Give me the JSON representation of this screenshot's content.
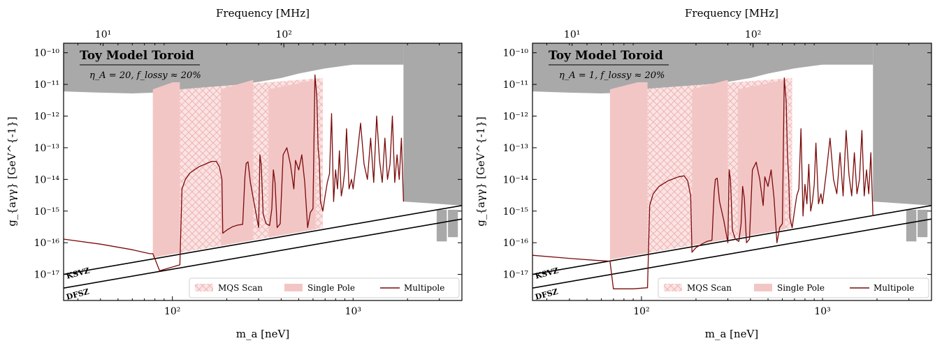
{
  "colors": {
    "excluded": "#a9a9a9",
    "scan_fill": "#f3cccc",
    "scan_hatch": "#f2bcbc",
    "single_pole": "#f3c6c6",
    "multipole": "#7a0a0a",
    "benchmark": "#000000"
  },
  "chart_data": [
    {
      "type": "line",
      "xlabel": "m_a [neV]",
      "ylabel": "g_{aγγ} [GeV^{-1}]",
      "top_xlabel": "Frequency [MHz]",
      "xscale": "log",
      "yscale": "log",
      "xlim": [
        25,
        4000
      ],
      "ylim": [
        1.5e-18,
        2e-10
      ],
      "x_ticks": [
        {
          "value": 100,
          "label": "10²"
        },
        {
          "value": 1000,
          "label": "10³"
        }
      ],
      "top_ticks": [
        {
          "value": 10,
          "label": "10¹"
        },
        {
          "value": 100,
          "label": "10²"
        }
      ],
      "y_ticks": [
        {
          "value": 1e-17,
          "label": "10⁻¹⁷"
        },
        {
          "value": 1e-16,
          "label": "10⁻¹⁶"
        },
        {
          "value": 1e-15,
          "label": "10⁻¹⁵"
        },
        {
          "value": 1e-14,
          "label": "10⁻¹⁴"
        },
        {
          "value": 1e-13,
          "label": "10⁻¹³"
        },
        {
          "value": 1e-12,
          "label": "10⁻¹²"
        },
        {
          "value": 1e-11,
          "label": "10⁻¹¹"
        },
        {
          "value": 1e-10,
          "label": "10⁻¹⁰"
        }
      ],
      "title": "Toy Model Toroid",
      "subtitle": "η_A = 20, f_lossy ≈ 20%",
      "benchmarks": [
        {
          "name": "KSVZ",
          "x": [
            25,
            4000
          ],
          "y": [
            1e-17,
            1.5e-15
          ]
        },
        {
          "name": "DFSZ",
          "x": [
            25,
            4000
          ],
          "y": [
            3.7e-18,
            5.6e-16
          ]
        }
      ],
      "excluded_region": {
        "upper_x": [
          25,
          40,
          60,
          80,
          100,
          150,
          200,
          300,
          400,
          500,
          700,
          900,
          1000,
          1200,
          1900
        ],
        "upper_y": [
          6e-12,
          5.5e-12,
          5.2e-12,
          5.5e-12,
          6e-12,
          7e-12,
          8.5e-12,
          1.2e-11,
          1.6e-11,
          2.2e-11,
          3.2e-11,
          3.9e-11,
          4.2e-11,
          4.2e-11,
          4.2e-11
        ],
        "high_mass_from": 1900,
        "high_mass_floor": 2e-15
      },
      "mqs_scan": {
        "x_range": [
          78,
          680
        ]
      },
      "single_pole_bands": [
        {
          "x": [
            78,
            110
          ]
        },
        {
          "x": [
            185,
            280
          ]
        },
        {
          "x": [
            340,
            620
          ]
        }
      ],
      "multipole": {
        "x": [
          25,
          40,
          60,
          75,
          78,
          85,
          110,
          113,
          118,
          125,
          140,
          165,
          175,
          182,
          188,
          190,
          200,
          215,
          230,
          245,
          252,
          256,
          262,
          270,
          285,
          300,
          305,
          310,
          318,
          330,
          345,
          355,
          362,
          370,
          380,
          395,
          410,
          430,
          450,
          470,
          480,
          500,
          520,
          540,
          560,
          580,
          600,
          615,
          630,
          640,
          650,
          660,
          680,
          700,
          720,
          740,
          760,
          780,
          800,
          820,
          840,
          860,
          880,
          900,
          920,
          950,
          980,
          1000,
          1050,
          1100,
          1150,
          1200,
          1250,
          1300,
          1350,
          1400,
          1450,
          1500,
          1550,
          1600,
          1650,
          1700,
          1750,
          1800,
          1850,
          1900
        ],
        "y": [
          1.3e-16,
          9e-17,
          6e-17,
          4.5e-17,
          4.5e-17,
          1.3e-17,
          2e-17,
          5e-15,
          1e-14,
          1.6e-14,
          2.5e-14,
          3.7e-14,
          3.7e-14,
          2.5e-14,
          1e-14,
          2e-16,
          2.5e-16,
          3.2e-16,
          3.6e-16,
          3.8e-16,
          1.2e-14,
          3.2e-14,
          3.6e-14,
          8e-15,
          1.5e-15,
          3e-16,
          6e-14,
          3e-14,
          8e-16,
          4e-16,
          3.5e-16,
          1.2e-15,
          2e-14,
          8e-15,
          3e-16,
          4e-16,
          6e-14,
          1e-13,
          3e-14,
          5e-15,
          4e-14,
          2e-14,
          6e-14,
          8e-15,
          3e-16,
          9e-16,
          1.2e-15,
          2e-11,
          4e-12,
          1e-13,
          4e-14,
          2e-15,
          1e-15,
          3e-15,
          8e-15,
          1.5e-14,
          1.2e-12,
          2e-15,
          2e-14,
          5e-15,
          8e-14,
          3e-15,
          6e-15,
          2e-14,
          4e-13,
          5e-15,
          1e-14,
          5e-15,
          5e-14,
          6e-13,
          3e-14,
          1e-14,
          2e-13,
          8e-15,
          1e-12,
          4e-14,
          8e-15,
          2e-13,
          1e-14,
          3e-14,
          1e-12,
          8e-15,
          6e-14,
          1e-14,
          2e-13,
          2e-15
        ]
      },
      "legend": {
        "position": "lower-right",
        "entries": [
          "MQS Scan",
          "Single Pole",
          "Multipole"
        ]
      }
    },
    {
      "type": "line",
      "xlabel": "m_a [neV]",
      "ylabel": "g_{aγγ} [GeV^{-1}]",
      "top_xlabel": "Frequency [MHz]",
      "xscale": "log",
      "yscale": "log",
      "xlim": [
        25,
        4000
      ],
      "ylim": [
        1.5e-18,
        2e-10
      ],
      "x_ticks": [
        {
          "value": 100,
          "label": "10²"
        },
        {
          "value": 1000,
          "label": "10³"
        }
      ],
      "top_ticks": [
        {
          "value": 10,
          "label": "10¹"
        },
        {
          "value": 100,
          "label": "10²"
        }
      ],
      "y_ticks": [
        {
          "value": 1e-17,
          "label": "10⁻¹⁷"
        },
        {
          "value": 1e-16,
          "label": "10⁻¹⁶"
        },
        {
          "value": 1e-15,
          "label": "10⁻¹⁵"
        },
        {
          "value": 1e-14,
          "label": "10⁻¹⁴"
        },
        {
          "value": 1e-13,
          "label": "10⁻¹³"
        },
        {
          "value": 1e-12,
          "label": "10⁻¹²"
        },
        {
          "value": 1e-11,
          "label": "10⁻¹¹"
        },
        {
          "value": 1e-10,
          "label": "10⁻¹⁰"
        }
      ],
      "title": "Toy Model Toroid",
      "subtitle": "η_A = 1, f_lossy ≈ 20%",
      "benchmarks": [
        {
          "name": "KSVZ",
          "x": [
            25,
            4000
          ],
          "y": [
            1e-17,
            1.5e-15
          ]
        },
        {
          "name": "DFSZ",
          "x": [
            25,
            4000
          ],
          "y": [
            3.7e-18,
            5.6e-16
          ]
        }
      ],
      "excluded_region": {
        "upper_x": [
          25,
          40,
          60,
          80,
          100,
          150,
          200,
          300,
          400,
          500,
          700,
          900,
          1000,
          1200,
          1900
        ],
        "upper_y": [
          6e-12,
          5.5e-12,
          5.2e-12,
          5.5e-12,
          6e-12,
          7e-12,
          8.5e-12,
          1.2e-11,
          1.6e-11,
          2.2e-11,
          3.2e-11,
          3.9e-11,
          4.2e-11,
          4.2e-11,
          4.2e-11
        ],
        "high_mass_from": 1900,
        "high_mass_floor": 2e-15
      },
      "mqs_scan": {
        "x_range": [
          67,
          680
        ]
      },
      "single_pole_bands": [
        {
          "x": [
            67,
            108
          ]
        },
        {
          "x": [
            190,
            300
          ]
        },
        {
          "x": [
            340,
            620
          ]
        }
      ],
      "multipole": {
        "x": [
          25,
          40,
          55,
          67,
          70,
          90,
          108,
          111,
          116,
          125,
          140,
          160,
          172,
          180,
          187,
          190,
          200,
          215,
          230,
          245,
          252,
          256,
          262,
          270,
          285,
          300,
          305,
          310,
          318,
          330,
          345,
          355,
          362,
          370,
          380,
          395,
          410,
          430,
          450,
          470,
          480,
          500,
          520,
          540,
          560,
          580,
          600,
          615,
          630,
          640,
          650,
          660,
          680,
          700,
          720,
          740,
          760,
          780,
          800,
          820,
          840,
          860,
          880,
          900,
          920,
          950,
          980,
          1000,
          1050,
          1100,
          1150,
          1200,
          1250,
          1300,
          1350,
          1400,
          1450,
          1500,
          1550,
          1600,
          1650,
          1700,
          1750,
          1800,
          1850,
          1900
        ],
        "y": [
          4e-17,
          3.2e-17,
          2.8e-17,
          2.6e-17,
          3.5e-18,
          3.5e-18,
          3.8e-18,
          1.5e-15,
          3.5e-15,
          6e-15,
          9e-15,
          1.2e-14,
          1.3e-14,
          9e-15,
          3e-15,
          5e-17,
          7e-17,
          9e-17,
          1.1e-16,
          1.2e-16,
          4e-15,
          1e-14,
          1.1e-14,
          2e-15,
          5e-16,
          1e-16,
          2e-14,
          1e-14,
          2.5e-16,
          1.3e-16,
          1.1e-16,
          4e-16,
          6e-15,
          2.5e-15,
          1e-16,
          1.3e-16,
          2e-14,
          3.5e-14,
          1e-14,
          1.5e-15,
          1.2e-14,
          6e-15,
          2e-14,
          2.5e-15,
          1e-16,
          3e-16,
          4e-16,
          1.6e-11,
          3e-12,
          6e-14,
          1.2e-14,
          6e-16,
          3e-16,
          1e-15,
          3e-15,
          5e-15,
          4e-13,
          7e-16,
          7e-15,
          1.7e-15,
          3e-14,
          1e-15,
          2e-15,
          7e-15,
          1.4e-13,
          1.7e-15,
          3.5e-15,
          1.7e-15,
          1.7e-14,
          2e-13,
          1e-14,
          3.5e-15,
          7e-14,
          3e-15,
          3.5e-13,
          1.4e-14,
          3e-15,
          7e-14,
          3.5e-15,
          1e-14,
          3.5e-13,
          3e-15,
          2e-14,
          3.5e-15,
          7e-14,
          7e-16
        ]
      },
      "legend": {
        "position": "lower-right",
        "entries": [
          "MQS Scan",
          "Single Pole",
          "Multipole"
        ]
      }
    }
  ]
}
